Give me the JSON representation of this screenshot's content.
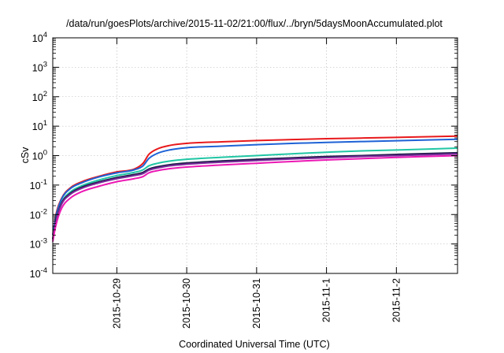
{
  "chart_data": {
    "type": "line",
    "title": "/data/run/goesPlots/archive/2015-11-02/21:00/flux/../bryn/5daysMoonAccumulated.plot",
    "xlabel": "Coordinated Universal Time (UTC)",
    "ylabel": "cSv",
    "yscale": "log",
    "ylim": [
      0.0001,
      10000
    ],
    "y_tick_exponents": [
      "-4",
      "-3",
      "-2",
      "-1",
      "0",
      "1",
      "2",
      "3",
      "4"
    ],
    "y_tick_base": "10",
    "xlim": [
      "2015-10-28T02:00",
      "2015-11-02T21:00"
    ],
    "x_ticks": [
      "2015-10-29",
      "2015-10-30",
      "2015-10-31",
      "2015-11-1",
      "2015-11-2"
    ],
    "x_tick_values": [
      "2015-10-29T00:00",
      "2015-10-30T00:00",
      "2015-10-31T00:00",
      "2015-11-01T00:00",
      "2015-11-02T00:00"
    ],
    "grid": true,
    "legend": "none",
    "x": [
      "2015-10-28T02:00",
      "2015-10-28T03:00",
      "2015-10-28T05:00",
      "2015-10-28T08:00",
      "2015-10-28T12:00",
      "2015-10-28T18:00",
      "2015-10-29T00:00",
      "2015-10-29T06:00",
      "2015-10-29T09:00",
      "2015-10-29T11:00",
      "2015-10-29T14:00",
      "2015-10-29T18:00",
      "2015-10-30T00:00",
      "2015-10-30T12:00",
      "2015-10-31T00:00",
      "2015-10-31T12:00",
      "2015-11-01T00:00",
      "2015-11-01T12:00",
      "2015-11-02T00:00",
      "2015-11-02T21:00"
    ],
    "series": [
      {
        "color": "#e8191c",
        "values": [
          0.002,
          0.009,
          0.035,
          0.08,
          0.13,
          0.2,
          0.28,
          0.35,
          0.55,
          1.1,
          1.7,
          2.2,
          2.6,
          2.95,
          3.25,
          3.5,
          3.75,
          3.95,
          4.15,
          4.6
        ]
      },
      {
        "color": "#1e62d6",
        "values": [
          0.002,
          0.008,
          0.033,
          0.075,
          0.12,
          0.19,
          0.26,
          0.33,
          0.45,
          0.8,
          1.2,
          1.55,
          1.85,
          2.1,
          2.35,
          2.6,
          2.8,
          3.0,
          3.2,
          3.6
        ]
      },
      {
        "color": "#20c6a4",
        "values": [
          0.0015,
          0.006,
          0.025,
          0.058,
          0.095,
          0.15,
          0.21,
          0.27,
          0.33,
          0.45,
          0.55,
          0.65,
          0.75,
          0.88,
          1.0,
          1.15,
          1.3,
          1.45,
          1.55,
          1.8
        ]
      },
      {
        "color": "#1c1c48",
        "values": [
          0.0015,
          0.006,
          0.024,
          0.052,
          0.085,
          0.13,
          0.18,
          0.23,
          0.27,
          0.35,
          0.42,
          0.49,
          0.56,
          0.66,
          0.75,
          0.84,
          0.93,
          1.0,
          1.1,
          1.25
        ]
      },
      {
        "color": "#7a2a9a",
        "values": [
          0.0014,
          0.0055,
          0.022,
          0.048,
          0.078,
          0.12,
          0.165,
          0.21,
          0.245,
          0.32,
          0.38,
          0.45,
          0.51,
          0.6,
          0.68,
          0.77,
          0.85,
          0.93,
          1.0,
          1.15
        ]
      },
      {
        "color": "#ec18b4",
        "values": [
          0.0012,
          0.004,
          0.016,
          0.036,
          0.06,
          0.092,
          0.13,
          0.165,
          0.195,
          0.26,
          0.31,
          0.36,
          0.41,
          0.48,
          0.55,
          0.63,
          0.71,
          0.79,
          0.87,
          1.0
        ]
      }
    ]
  }
}
